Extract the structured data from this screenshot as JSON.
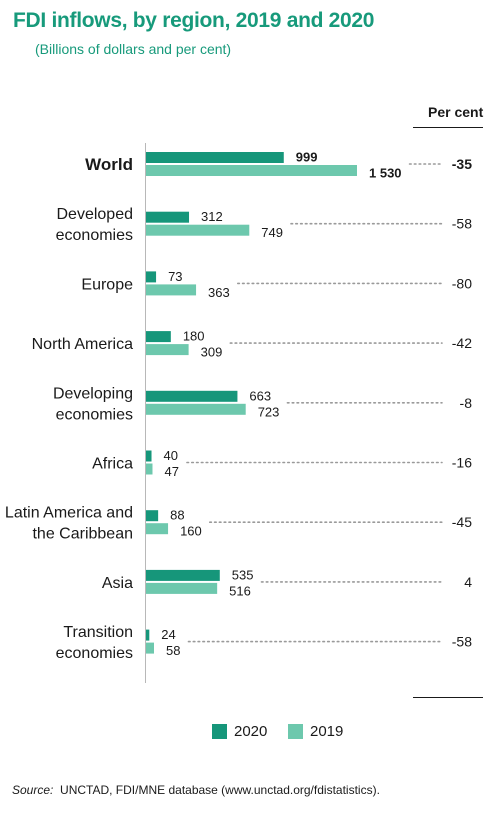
{
  "title": "FDI inflows, by region, 2019 and 2020",
  "subtitle": "(Billions of dollars and per cent)",
  "percent_header": "Per cent",
  "colors": {
    "y2020": "#16967a",
    "y2019": "#6dc8ad",
    "title": "#179a7b"
  },
  "legend": [
    {
      "label": "2020",
      "color": "#16967a"
    },
    {
      "label": "2019",
      "color": "#6dc8ad"
    }
  ],
  "source": {
    "label": "Source:",
    "text": "UNCTAD, FDI/MNE database (www.unctad.org/fdistatistics)."
  },
  "chart_data": {
    "type": "bar",
    "orientation": "horizontal",
    "categories": [
      [
        "World"
      ],
      [
        "Developed",
        "economies"
      ],
      [
        "Europe"
      ],
      [
        "North America"
      ],
      [
        "Developing",
        "economies"
      ],
      [
        "Africa"
      ],
      [
        "Latin America and",
        "the Caribbean"
      ],
      [
        "Asia"
      ],
      [
        "Transition",
        "economies"
      ]
    ],
    "bold_categories": [
      "World"
    ],
    "series": [
      {
        "name": "2020",
        "values": [
          999,
          312,
          73,
          180,
          663,
          40,
          88,
          535,
          24
        ],
        "labels": [
          "999",
          "312",
          "73",
          "180",
          "663",
          "40",
          "88",
          "535",
          "24"
        ]
      },
      {
        "name": "2019",
        "values": [
          1530,
          749,
          363,
          309,
          723,
          47,
          160,
          516,
          58
        ],
        "labels": [
          "1 530",
          "749",
          "363",
          "309",
          "723",
          "47",
          "160",
          "516",
          "58"
        ]
      }
    ],
    "percent_change": [
      "-35",
      "-58",
      "-80",
      "-42",
      "-8",
      "-16",
      "-45",
      "4",
      "-58"
    ],
    "xlim": [
      0,
      1530
    ]
  }
}
